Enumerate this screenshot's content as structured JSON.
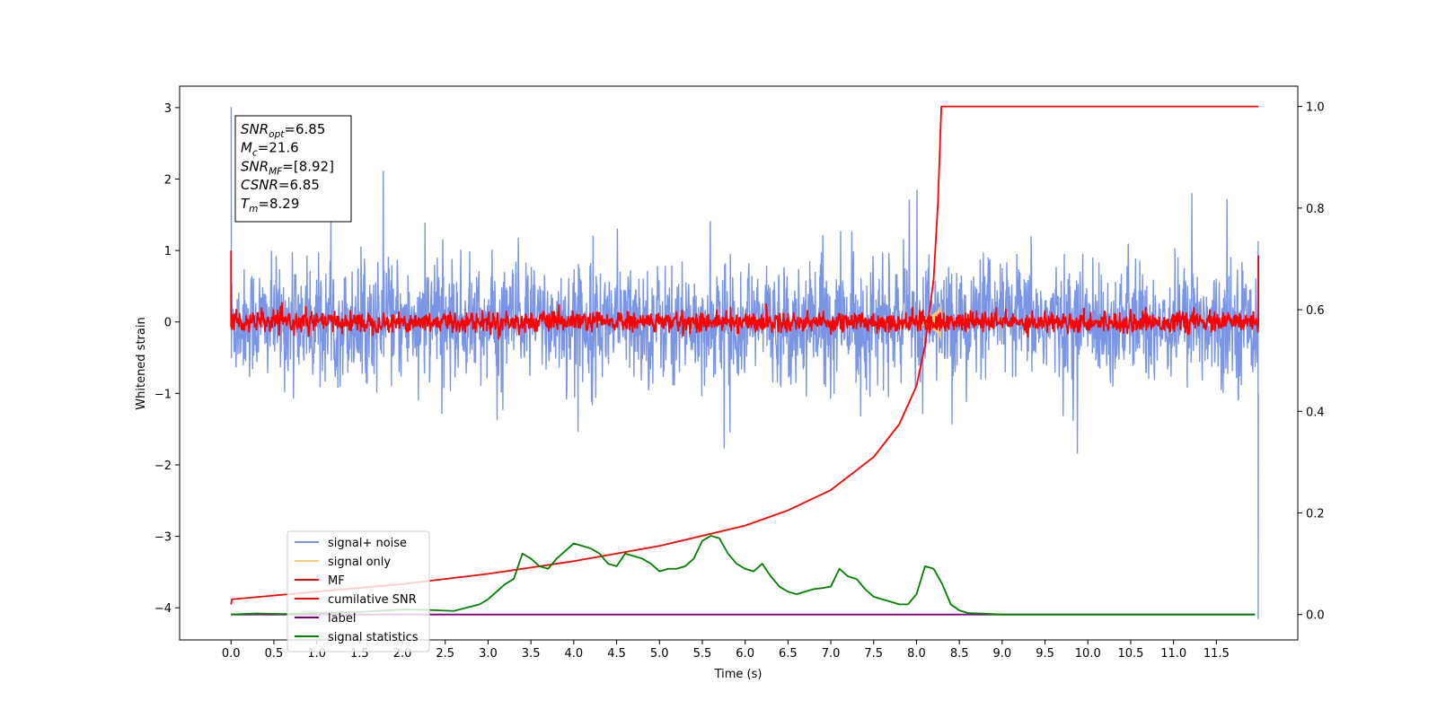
{
  "chart_data": {
    "type": "line",
    "title": "",
    "xlabel": "Time (s)",
    "ylabel": "Whitened strain",
    "y2label": "",
    "xlim": [
      -0.6,
      12.45
    ],
    "ylim": [
      -4.45,
      3.3
    ],
    "y2lim": [
      -0.05,
      1.04
    ],
    "xticks": [
      "0.0",
      "0.5",
      "1.0",
      "1.5",
      "2.0",
      "2.5",
      "3.0",
      "3.5",
      "4.0",
      "4.5",
      "5.0",
      "5.5",
      "6.0",
      "6.5",
      "7.0",
      "7.5",
      "8.0",
      "8.5",
      "9.0",
      "9.5",
      "10.0",
      "10.5",
      "11.0",
      "11.5"
    ],
    "yticks": [
      "3",
      "2",
      "1",
      "0",
      "−1",
      "−2",
      "−3",
      "−4"
    ],
    "y2ticks": [
      "1.0",
      "0.8",
      "0.6",
      "0.4",
      "0.2",
      "0.0"
    ],
    "grid": false,
    "legend_position": "lower-left",
    "info_box": [
      {
        "sym": "SNR",
        "sub": "opt",
        "text": "=6.85"
      },
      {
        "sym": "M",
        "sub": "c",
        "text": "=21.6"
      },
      {
        "sym": "SNR",
        "sub": "MF",
        "text": "=[8.92]"
      },
      {
        "sym": "CSNR",
        "sub": "",
        "text": "=6.85"
      },
      {
        "sym": "T",
        "sub": "m",
        "text": "=8.29"
      }
    ],
    "series": [
      {
        "name": "signal+ noise",
        "color": "#7a95e6",
        "axis": "left",
        "kind": "noise",
        "x_range": [
          0,
          11.99
        ],
        "amplitude": 0.45,
        "min": -4.15,
        "max": 3.0
      },
      {
        "name": "signal only",
        "color": "#f5cd78",
        "axis": "left",
        "kind": "chirp",
        "x_range": [
          7.9,
          8.29
        ],
        "peak_time": 8.29,
        "peak_amplitude": 0.65
      },
      {
        "name": "MF",
        "color": "#ff0000",
        "axis": "left",
        "kind": "noise",
        "x_range": [
          0,
          11.99
        ],
        "amplitude": 0.08,
        "start_value": 1.0,
        "end_value": 0.93
      },
      {
        "name": "cumilative SNR",
        "color": "#ff0000",
        "axis": "right",
        "x": [
          0,
          0.01,
          1,
          2,
          3,
          4,
          5,
          6,
          6.5,
          7,
          7.5,
          7.8,
          8.0,
          8.1,
          8.2,
          8.25,
          8.29,
          11.99
        ],
        "y": [
          0.02,
          0.03,
          0.045,
          0.06,
          0.08,
          0.105,
          0.135,
          0.175,
          0.205,
          0.245,
          0.31,
          0.375,
          0.45,
          0.53,
          0.66,
          0.81,
          1.0,
          1.0
        ]
      },
      {
        "name": "label",
        "color": "#800080",
        "axis": "right",
        "x": [
          0,
          11.95
        ],
        "y": [
          0.0,
          0.0
        ]
      },
      {
        "name": "signal statistics",
        "color": "#008000",
        "axis": "right",
        "x": [
          0,
          0.3,
          0.6,
          1.0,
          1.5,
          2.0,
          2.3,
          2.6,
          2.9,
          3.0,
          3.2,
          3.3,
          3.4,
          3.5,
          3.6,
          3.7,
          3.8,
          3.9,
          4.0,
          4.1,
          4.2,
          4.3,
          4.4,
          4.5,
          4.6,
          4.7,
          4.8,
          4.9,
          5.0,
          5.1,
          5.2,
          5.3,
          5.4,
          5.5,
          5.6,
          5.7,
          5.8,
          5.9,
          6.0,
          6.1,
          6.2,
          6.3,
          6.4,
          6.5,
          6.6,
          6.7,
          6.8,
          6.9,
          7.0,
          7.1,
          7.2,
          7.3,
          7.4,
          7.5,
          7.6,
          7.7,
          7.8,
          7.9,
          8.0,
          8.1,
          8.2,
          8.3,
          8.4,
          8.5,
          8.6,
          9.0,
          10.0,
          11.0,
          11.95
        ],
        "y": [
          0.0,
          0.002,
          0.001,
          0.003,
          0.005,
          0.01,
          0.009,
          0.007,
          0.02,
          0.03,
          0.06,
          0.07,
          0.12,
          0.11,
          0.095,
          0.09,
          0.11,
          0.125,
          0.14,
          0.135,
          0.13,
          0.12,
          0.1,
          0.095,
          0.12,
          0.115,
          0.11,
          0.1,
          0.085,
          0.09,
          0.09,
          0.095,
          0.11,
          0.145,
          0.155,
          0.15,
          0.12,
          0.1,
          0.09,
          0.085,
          0.1,
          0.075,
          0.055,
          0.045,
          0.04,
          0.045,
          0.05,
          0.052,
          0.055,
          0.09,
          0.075,
          0.07,
          0.05,
          0.035,
          0.03,
          0.025,
          0.02,
          0.02,
          0.04,
          0.095,
          0.09,
          0.06,
          0.02,
          0.008,
          0.003,
          0.0,
          0.0,
          0.0,
          0.0
        ]
      }
    ]
  }
}
